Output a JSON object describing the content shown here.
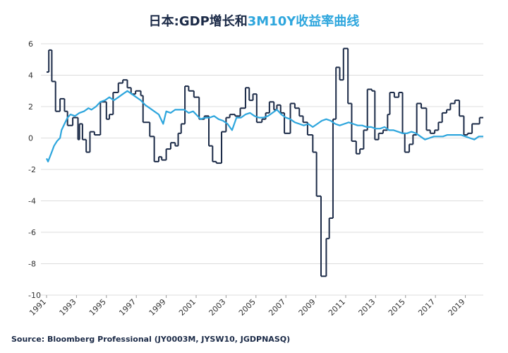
{
  "chart_data": {
    "type": "line",
    "title": [
      "日本:GDP增长和",
      "3M10Y收益率曲线"
    ],
    "title_colors": [
      "#1b2a47",
      "#2ea6dd"
    ],
    "source": "Source: Bloomberg Professional  (JY0003M, JYSW10, JGDPNASQ)",
    "xlim": [
      1991,
      2020.2
    ],
    "xticks": [
      1991,
      1993,
      1995,
      1997,
      1999,
      2001,
      2003,
      2005,
      2007,
      2009,
      2011,
      2013,
      2015,
      2017,
      2019
    ],
    "ylim": [
      -10,
      6
    ],
    "yticks": [
      -10,
      -8,
      -6,
      -4,
      -2,
      0,
      2,
      4,
      6
    ],
    "grid": true,
    "series": [
      {
        "color": "#1b2a47",
        "step": true,
        "x": [
          1991,
          1991.15,
          1991.35,
          1991.6,
          1991.9,
          1992.2,
          1992.4,
          1992.75,
          1993.1,
          1993.2,
          1993.4,
          1993.65,
          1993.9,
          1994.2,
          1994.6,
          1995.0,
          1995.2,
          1995.45,
          1995.8,
          1996.1,
          1996.4,
          1996.65,
          1996.95,
          1997.3,
          1997.45,
          1997.9,
          1998.2,
          1998.5,
          1998.7,
          1999.0,
          1999.3,
          1999.6,
          1999.8,
          2000.0,
          2000.25,
          2000.5,
          2000.85,
          2001.2,
          2001.55,
          2001.85,
          2002.1,
          2002.35,
          2002.7,
          2003.0,
          2003.25,
          2003.6,
          2003.95,
          2004.3,
          2004.55,
          2004.8,
          2005.05,
          2005.4,
          2005.65,
          2005.9,
          2006.2,
          2006.4,
          2006.65,
          2006.9,
          2007.3,
          2007.6,
          2007.9,
          2008.15,
          2008.45,
          2008.8,
          2009.05,
          2009.35,
          2009.7,
          2009.9,
          2010.15,
          2010.35,
          2010.6,
          2010.85,
          2011.15,
          2011.4,
          2011.7,
          2011.95,
          2012.2,
          2012.45,
          2012.75,
          2012.95,
          2013.2,
          2013.5,
          2013.8,
          2013.95,
          2014.25,
          2014.55,
          2014.8,
          2014.95,
          2015.25,
          2015.5,
          2015.75,
          2016.05,
          2016.4,
          2016.65,
          2016.95,
          2017.2,
          2017.45,
          2017.75,
          2018.0,
          2018.3,
          2018.6,
          2018.9,
          2019.15,
          2019.45,
          2019.95
        ],
        "values": [
          4.2,
          5.6,
          3.6,
          1.7,
          2.5,
          1.7,
          0.8,
          1.3,
          -0.1,
          0.9,
          -0.1,
          -0.9,
          0.4,
          0.2,
          2.3,
          1.2,
          1.5,
          2.9,
          3.5,
          3.7,
          3.2,
          2.8,
          3.0,
          2.7,
          1.0,
          0.1,
          -1.5,
          -1.2,
          -1.4,
          -0.7,
          -0.3,
          -0.5,
          0.3,
          0.9,
          3.3,
          3.0,
          2.6,
          1.2,
          1.4,
          -0.5,
          -1.5,
          -1.6,
          0.4,
          1.3,
          1.5,
          1.4,
          1.9,
          3.2,
          2.4,
          2.8,
          1.0,
          1.2,
          1.6,
          2.3,
          1.8,
          2.1,
          1.6,
          0.3,
          2.2,
          1.9,
          1.4,
          1.0,
          0.2,
          -0.9,
          -3.7,
          -8.8,
          -6.4,
          -5.1,
          1.2,
          4.5,
          3.7,
          5.7,
          2.2,
          -0.2,
          -1.0,
          -0.7,
          0.5,
          3.1,
          3.0,
          -0.1,
          0.3,
          0.5,
          1.5,
          2.9,
          2.6,
          2.9,
          0.3,
          -0.9,
          -0.4,
          0.2,
          2.2,
          1.9,
          0.5,
          0.3,
          0.5,
          1.0,
          1.6,
          1.8,
          2.2,
          2.4,
          1.4,
          0.2,
          0.3,
          0.9,
          1.3
        ]
      },
      {
        "color": "#2ea6dd",
        "x": [
          1991,
          1991.1,
          1991.3,
          1991.5,
          1991.7,
          1991.9,
          1992.0,
          1992.2,
          1992.4,
          1992.6,
          1992.9,
          1993.2,
          1993.5,
          1993.8,
          1994.0,
          1994.3,
          1994.6,
          1994.9,
          1995.2,
          1995.5,
          1995.8,
          1996.1,
          1996.4,
          1996.7,
          1997.0,
          1997.3,
          1997.6,
          1997.9,
          1998.2,
          1998.5,
          1998.8,
          1999.0,
          1999.3,
          1999.6,
          1999.9,
          2000.2,
          2000.5,
          2000.8,
          2001.0,
          2001.3,
          2001.6,
          2001.9,
          2002.2,
          2002.5,
          2002.8,
          2003.1,
          2003.4,
          2003.7,
          2004.0,
          2004.3,
          2004.6,
          2004.9,
          2005.2,
          2005.5,
          2005.8,
          2006.1,
          2006.4,
          2006.7,
          2007.0,
          2007.3,
          2007.6,
          2007.9,
          2008.2,
          2008.5,
          2008.8,
          2009.1,
          2009.4,
          2009.7,
          2010.0,
          2010.3,
          2010.6,
          2010.9,
          2011.2,
          2011.5,
          2011.8,
          2012.1,
          2012.4,
          2012.7,
          2013.0,
          2013.3,
          2013.6,
          2013.9,
          2014.2,
          2014.5,
          2014.8,
          2015.1,
          2015.4,
          2015.7,
          2016.0,
          2016.3,
          2016.6,
          2016.9,
          2017.2,
          2017.5,
          2017.8,
          2018.1,
          2018.4,
          2018.7,
          2019.0,
          2019.3,
          2019.6,
          2019.9,
          2020.2
        ],
        "values": [
          -1.3,
          -1.5,
          -1.0,
          -0.5,
          -0.2,
          0.0,
          0.5,
          0.9,
          1.3,
          1.5,
          1.4,
          1.6,
          1.7,
          1.9,
          1.8,
          2.0,
          2.3,
          2.4,
          2.6,
          2.4,
          2.6,
          2.8,
          3.0,
          2.8,
          2.6,
          2.4,
          2.1,
          1.9,
          1.7,
          1.5,
          0.9,
          1.7,
          1.6,
          1.8,
          1.8,
          1.8,
          1.6,
          1.7,
          1.5,
          1.2,
          1.3,
          1.3,
          1.4,
          1.2,
          1.1,
          0.9,
          0.5,
          1.3,
          1.3,
          1.5,
          1.6,
          1.4,
          1.3,
          1.3,
          1.4,
          1.6,
          1.8,
          1.5,
          1.3,
          1.2,
          1.0,
          0.9,
          0.8,
          0.9,
          0.7,
          0.9,
          1.1,
          1.2,
          1.1,
          0.9,
          0.8,
          0.9,
          1.0,
          0.9,
          0.8,
          0.8,
          0.7,
          0.7,
          0.6,
          0.6,
          0.7,
          0.5,
          0.5,
          0.4,
          0.3,
          0.3,
          0.4,
          0.3,
          0.1,
          -0.1,
          0.0,
          0.1,
          0.1,
          0.1,
          0.2,
          0.2,
          0.2,
          0.2,
          0.1,
          0.0,
          -0.1,
          0.1,
          0.1
        ]
      }
    ]
  }
}
